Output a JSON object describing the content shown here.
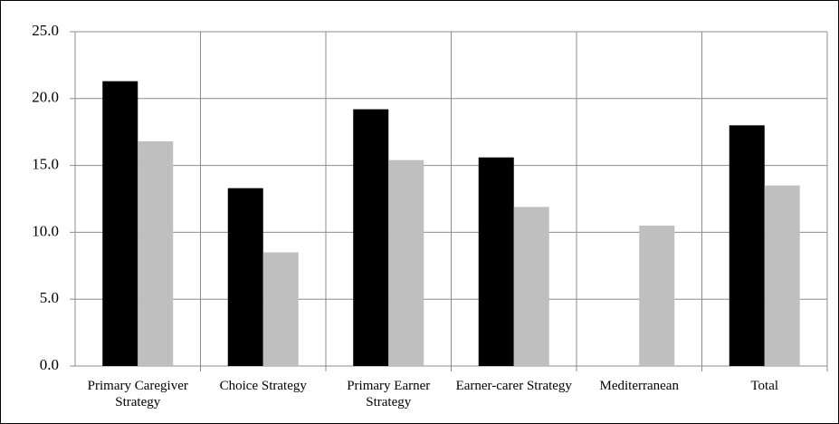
{
  "chart_data": {
    "type": "bar",
    "categories": [
      "Primary Caregiver Strategy",
      "Choice Strategy",
      "Primary Earner Strategy",
      "Earner-carer Strategy",
      "Mediterranean",
      "Total"
    ],
    "series": [
      {
        "color": "#000000",
        "values": [
          21.3,
          13.3,
          19.2,
          15.6,
          null,
          18.0
        ]
      },
      {
        "color": "#bfbfbf",
        "values": [
          16.8,
          8.5,
          15.4,
          11.9,
          10.5,
          13.5
        ]
      }
    ],
    "ylim": [
      0,
      25
    ],
    "yticks": [
      {
        "value": 0,
        "label": "0.0"
      },
      {
        "value": 5,
        "label": "5.0"
      },
      {
        "value": 10,
        "label": "10.0"
      },
      {
        "value": 15,
        "label": "15.0"
      },
      {
        "value": 20,
        "label": "20.0"
      },
      {
        "value": 25,
        "label": "25.0"
      }
    ],
    "grid": true
  }
}
